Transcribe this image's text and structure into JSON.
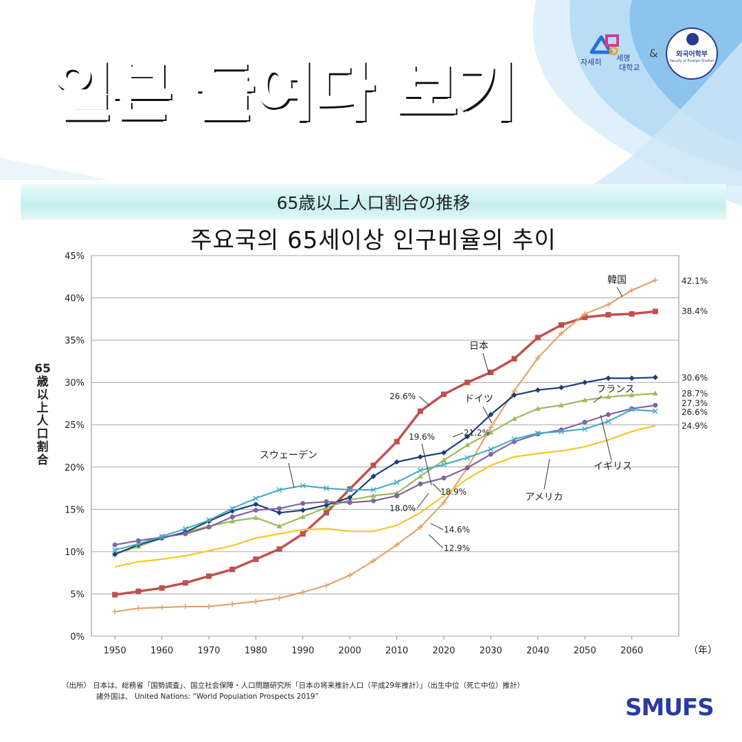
{
  "page": {
    "headline": "일본 들여다 보기",
    "logo_text_1": "자세히",
    "logo_text_2": "세명",
    "logo_text_3": "대학교",
    "amp": "&",
    "badge_name": "외국어학부",
    "badge_sub": "Faculty of Foreign Studies",
    "brand": "SMUFS",
    "source_line1": "（出所） 日本は、総務省「国勢調査」、国立社会保障・人口問題研究所「日本の将来推計人口（平成29年推計）」（出生中位（死亡中位）推計）",
    "source_line2": "諸外国は、 United Nations: “World Population Prospects 2019”"
  },
  "chart_data": {
    "type": "line",
    "title": "65歳以上人口割合の推移",
    "subtitle": "주요국의 65세이상 인구비율의 추이",
    "ylabel": "65歳以上人口割合",
    "x_unit_label": "（年）",
    "ylim": [
      0,
      45
    ],
    "xlim": [
      1945,
      2070
    ],
    "x_ticks": [
      1950,
      1960,
      1970,
      1980,
      1990,
      2000,
      2010,
      2020,
      2030,
      2040,
      2050,
      2060
    ],
    "y_ticks": [
      "0%",
      "5%",
      "10%",
      "15%",
      "20%",
      "25%",
      "30%",
      "35%",
      "40%",
      "45%"
    ],
    "grid": true,
    "series": [
      {
        "name": "日本",
        "color": "#c0504d",
        "marker": "square",
        "x": [
          1950,
          1955,
          1960,
          1965,
          1970,
          1975,
          1980,
          1985,
          1990,
          1995,
          2000,
          2005,
          2010,
          2015,
          2020,
          2025,
          2030,
          2035,
          2040,
          2045,
          2050,
          2055,
          2060,
          2065
        ],
        "y": [
          4.9,
          5.3,
          5.7,
          6.3,
          7.1,
          7.9,
          9.1,
          10.3,
          12.1,
          14.6,
          17.4,
          20.2,
          23.0,
          26.6,
          28.6,
          30.0,
          31.2,
          32.8,
          35.3,
          36.8,
          37.7,
          38.0,
          38.1,
          38.4
        ]
      },
      {
        "name": "韓国",
        "color": "#e3a36a",
        "marker": "cross",
        "x": [
          1950,
          1955,
          1960,
          1965,
          1970,
          1975,
          1980,
          1985,
          1990,
          1995,
          2000,
          2005,
          2010,
          2015,
          2020,
          2025,
          2030,
          2035,
          2040,
          2045,
          2050,
          2055,
          2060,
          2065
        ],
        "y": [
          2.9,
          3.3,
          3.4,
          3.5,
          3.5,
          3.8,
          4.1,
          4.5,
          5.2,
          6.0,
          7.2,
          8.9,
          10.8,
          12.9,
          15.8,
          19.9,
          24.7,
          29.0,
          32.9,
          35.8,
          38.1,
          39.2,
          40.9,
          42.1
        ]
      },
      {
        "name": "フランス",
        "color": "#9bbb59",
        "marker": "triangle",
        "x": [
          1950,
          1955,
          1960,
          1965,
          1970,
          1975,
          1980,
          1985,
          1990,
          1995,
          2000,
          2005,
          2010,
          2015,
          2020,
          2025,
          2030,
          2035,
          2040,
          2045,
          2050,
          2055,
          2060,
          2065
        ],
        "y": [
          9.7,
          10.6,
          11.6,
          12.3,
          13.0,
          13.6,
          14.0,
          13.0,
          14.1,
          15.2,
          16.1,
          16.6,
          16.9,
          18.9,
          20.8,
          22.6,
          24.1,
          25.7,
          26.9,
          27.3,
          27.9,
          28.3,
          28.5,
          28.7
        ]
      },
      {
        "name": "ドイツ",
        "color": "#1f3c78",
        "marker": "diamond",
        "x": [
          1950,
          1955,
          1960,
          1965,
          1970,
          1975,
          1980,
          1985,
          1990,
          1995,
          2000,
          2005,
          2010,
          2015,
          2020,
          2025,
          2030,
          2035,
          2040,
          2045,
          2050,
          2055,
          2060,
          2065
        ],
        "y": [
          9.7,
          10.8,
          11.6,
          12.3,
          13.6,
          14.8,
          15.6,
          14.6,
          14.9,
          15.5,
          16.4,
          18.9,
          20.6,
          21.2,
          21.7,
          23.6,
          26.2,
          28.5,
          29.1,
          29.4,
          30.0,
          30.5,
          30.5,
          30.6
        ]
      },
      {
        "name": "イギリス",
        "color": "#8064a2",
        "marker": "circle",
        "x": [
          1950,
          1955,
          1960,
          1965,
          1970,
          1975,
          1980,
          1985,
          1990,
          1995,
          2000,
          2005,
          2010,
          2015,
          2020,
          2025,
          2030,
          2035,
          2040,
          2045,
          2050,
          2055,
          2060,
          2065
        ],
        "y": [
          10.8,
          11.3,
          11.7,
          12.1,
          12.9,
          14.1,
          14.9,
          15.1,
          15.7,
          15.9,
          15.8,
          16.0,
          16.6,
          18.0,
          18.7,
          19.9,
          21.5,
          23.0,
          23.9,
          24.4,
          25.3,
          26.2,
          26.9,
          27.3
        ]
      },
      {
        "name": "スウェーデン",
        "color": "#4bacc6",
        "marker": "xmark",
        "x": [
          1950,
          1955,
          1960,
          1965,
          1970,
          1975,
          1980,
          1985,
          1990,
          1995,
          2000,
          2005,
          2010,
          2015,
          2020,
          2025,
          2030,
          2035,
          2040,
          2045,
          2050,
          2055,
          2060,
          2065
        ],
        "y": [
          10.2,
          10.9,
          11.8,
          12.7,
          13.7,
          15.1,
          16.3,
          17.3,
          17.8,
          17.5,
          17.3,
          17.3,
          18.2,
          19.6,
          20.3,
          21.1,
          22.1,
          23.3,
          24.0,
          24.2,
          24.5,
          25.4,
          26.8,
          26.6
        ]
      },
      {
        "name": "アメリカ",
        "color": "#f5c527",
        "marker": "none",
        "x": [
          1950,
          1955,
          1960,
          1965,
          1970,
          1975,
          1980,
          1985,
          1990,
          1995,
          2000,
          2005,
          2010,
          2015,
          2020,
          2025,
          2030,
          2035,
          2040,
          2045,
          2050,
          2055,
          2060,
          2065
        ],
        "y": [
          8.2,
          8.8,
          9.1,
          9.5,
          10.1,
          10.7,
          11.6,
          12.1,
          12.6,
          12.7,
          12.4,
          12.4,
          13.1,
          14.6,
          16.6,
          18.6,
          20.2,
          21.2,
          21.6,
          21.9,
          22.4,
          23.2,
          24.2,
          24.9
        ]
      }
    ],
    "end_labels": [
      {
        "text": "42.1%",
        "y": 42.1
      },
      {
        "text": "38.4%",
        "y": 38.4
      },
      {
        "text": "30.6%",
        "y": 30.6
      },
      {
        "text": "28.7%",
        "y": 28.7
      },
      {
        "text": "27.3%",
        "y": 27.3
      },
      {
        "text": "26.6%",
        "y": 26.6
      },
      {
        "text": "24.9%",
        "y": 24.9
      }
    ],
    "annotations": [
      {
        "text": "韓国",
        "series": "韓国"
      },
      {
        "text": "日本",
        "series": "日本"
      },
      {
        "text": "ドイツ",
        "series": "ドイツ"
      },
      {
        "text": "フランス",
        "series": "フランス"
      },
      {
        "text": "イギリス",
        "series": "イギリス"
      },
      {
        "text": "アメリカ",
        "series": "アメリカ"
      },
      {
        "text": "スウェーデン",
        "series": "スウェーデン"
      },
      {
        "text": "26.6%",
        "series": "日本"
      },
      {
        "text": "19.6%",
        "series": "スウェーデン"
      },
      {
        "text": "21.2%",
        "series": "ドイツ"
      },
      {
        "text": "18.9%",
        "series": "フランス"
      },
      {
        "text": "18.0%",
        "series": "イギリス"
      },
      {
        "text": "14.6%",
        "series": "アメリカ"
      },
      {
        "text": "12.9%",
        "series": "韓国"
      }
    ]
  }
}
